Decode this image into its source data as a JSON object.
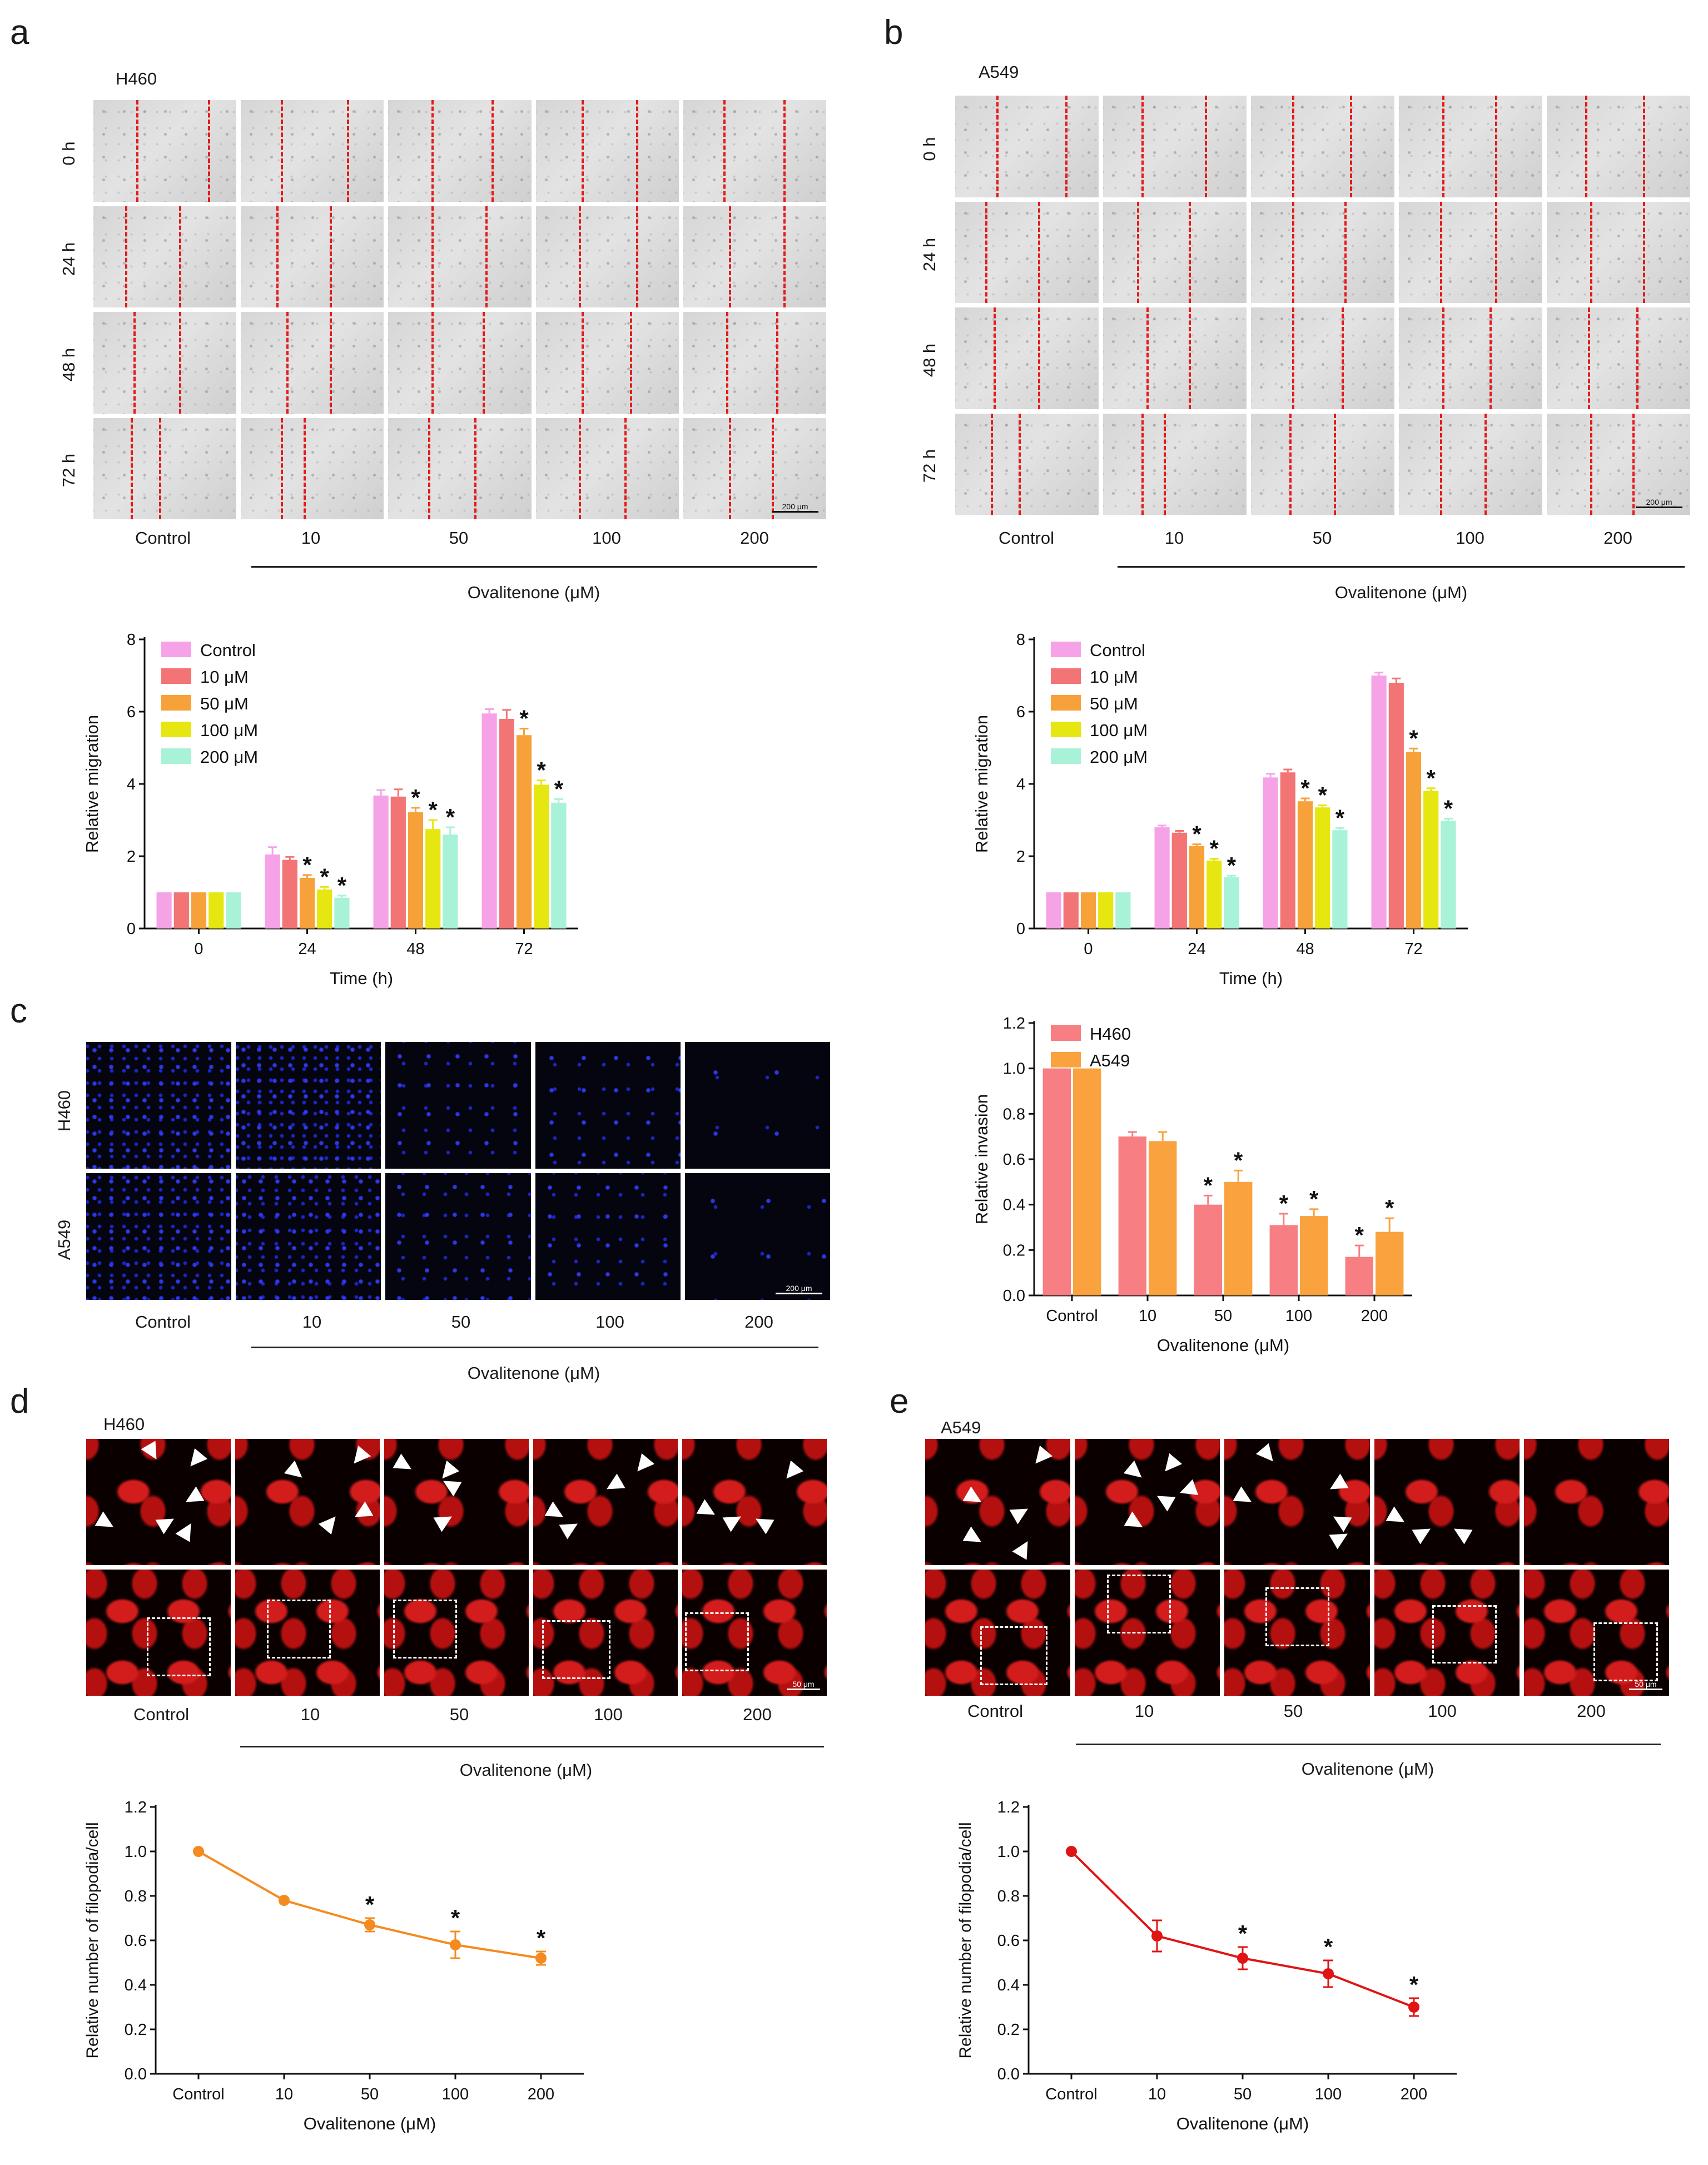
{
  "panels": {
    "a": "a",
    "b": "b",
    "c": "c",
    "d": "d",
    "e": "e"
  },
  "wound": {
    "a": {
      "cell": "H460"
    },
    "b": {
      "cell": "A549"
    },
    "rows": [
      "0 h",
      "24 h",
      "48 h",
      "72 h"
    ],
    "scale": "200 μm"
  },
  "conditions": [
    "Control",
    "10",
    "50",
    "100",
    "200"
  ],
  "treatment_label": "Ovalitenone (μM)",
  "invasion_images": {
    "rows": [
      "H460",
      "A549"
    ],
    "scale": "200 μm"
  },
  "phalloidin": {
    "d": {
      "cell": "H460"
    },
    "e": {
      "cell": "A549"
    },
    "scale": "50 μm"
  },
  "chart_data": [
    {
      "id": "a-migration",
      "type": "bar",
      "title": "",
      "xlabel": "Time (h)",
      "ylabel": "Relative migration",
      "ylim": [
        0,
        8
      ],
      "yticks": [
        "0",
        "2",
        "4",
        "6",
        "8"
      ],
      "categories": [
        "0",
        "24",
        "48",
        "72"
      ],
      "legend_position": "top-left",
      "series": [
        {
          "name": "Control",
          "color": "#f5a3e6",
          "values": [
            1.0,
            2.05,
            3.68,
            5.95
          ],
          "err": [
            0,
            0.2,
            0.15,
            0.12
          ],
          "sig": [
            false,
            false,
            false,
            false
          ]
        },
        {
          "name": "10  μM",
          "color": "#f27474",
          "values": [
            1.0,
            1.9,
            3.65,
            5.8
          ],
          "err": [
            0,
            0.08,
            0.2,
            0.25
          ],
          "sig": [
            false,
            false,
            false,
            false
          ]
        },
        {
          "name": "50  μM",
          "color": "#f7a13a",
          "values": [
            1.0,
            1.4,
            3.22,
            5.35
          ],
          "err": [
            0,
            0.08,
            0.12,
            0.18
          ],
          "sig": [
            false,
            true,
            true,
            true
          ]
        },
        {
          "name": "100  μM",
          "color": "#e6e610",
          "values": [
            1.0,
            1.08,
            2.75,
            3.98
          ],
          "err": [
            0,
            0.07,
            0.25,
            0.12
          ],
          "sig": [
            false,
            true,
            true,
            true
          ]
        },
        {
          "name": "200  μM",
          "color": "#a8f2d8",
          "values": [
            1.0,
            0.85,
            2.6,
            3.48
          ],
          "err": [
            0,
            0.06,
            0.2,
            0.1
          ],
          "sig": [
            false,
            true,
            true,
            true
          ]
        }
      ]
    },
    {
      "id": "b-migration",
      "type": "bar",
      "title": "",
      "xlabel": "Time (h)",
      "ylabel": "Relative migration",
      "ylim": [
        0,
        8
      ],
      "yticks": [
        "0",
        "2",
        "4",
        "6",
        "8"
      ],
      "categories": [
        "0",
        "24",
        "48",
        "72"
      ],
      "legend_position": "top-left",
      "series": [
        {
          "name": "Control",
          "color": "#f5a3e6",
          "values": [
            1.0,
            2.8,
            4.18,
            7.0
          ],
          "err": [
            0,
            0.05,
            0.1,
            0.08
          ],
          "sig": [
            false,
            false,
            false,
            false
          ]
        },
        {
          "name": "10  μM",
          "color": "#f27474",
          "values": [
            1.0,
            2.65,
            4.32,
            6.8
          ],
          "err": [
            0,
            0.05,
            0.08,
            0.12
          ],
          "sig": [
            false,
            false,
            false,
            false
          ]
        },
        {
          "name": "50  μM",
          "color": "#f7a13a",
          "values": [
            1.0,
            2.28,
            3.52,
            4.88
          ],
          "err": [
            0,
            0.05,
            0.08,
            0.1
          ],
          "sig": [
            false,
            true,
            true,
            true
          ]
        },
        {
          "name": "100  μM",
          "color": "#e6e610",
          "values": [
            1.0,
            1.88,
            3.35,
            3.8
          ],
          "err": [
            0,
            0.05,
            0.06,
            0.08
          ],
          "sig": [
            false,
            true,
            true,
            true
          ]
        },
        {
          "name": "200  μM",
          "color": "#a8f2d8",
          "values": [
            1.0,
            1.42,
            2.72,
            2.98
          ],
          "err": [
            0,
            0.04,
            0.06,
            0.06
          ],
          "sig": [
            false,
            true,
            true,
            true
          ]
        }
      ]
    },
    {
      "id": "c-invasion",
      "type": "bar",
      "title": "",
      "xlabel": "Ovalitenone (μM)",
      "ylabel": "Relative invasion",
      "ylim": [
        0,
        1.2
      ],
      "yticks": [
        "0.0",
        "0.2",
        "0.4",
        "0.6",
        "0.8",
        "1.0",
        "1.2"
      ],
      "categories": [
        "Control",
        "10",
        "50",
        "100",
        "200"
      ],
      "legend_position": "top-left",
      "series": [
        {
          "name": "H460",
          "color": "#f77e82",
          "values": [
            1.0,
            0.7,
            0.4,
            0.31,
            0.17
          ],
          "err": [
            0,
            0.02,
            0.04,
            0.05,
            0.05
          ],
          "sig": [
            false,
            false,
            true,
            true,
            true
          ]
        },
        {
          "name": "A549",
          "color": "#f9a23e",
          "values": [
            1.0,
            0.68,
            0.5,
            0.35,
            0.28
          ],
          "err": [
            0,
            0.04,
            0.05,
            0.03,
            0.06
          ],
          "sig": [
            false,
            false,
            true,
            true,
            true
          ]
        }
      ]
    },
    {
      "id": "d-filopodia",
      "type": "line",
      "title": "",
      "xlabel": "Ovalitenone (μM)",
      "ylabel": "Relative number of filopodia/cell",
      "ylim": [
        0,
        1.2
      ],
      "yticks": [
        "0.0",
        "0.2",
        "0.4",
        "0.6",
        "0.8",
        "1.0",
        "1.2"
      ],
      "categories": [
        "Control",
        "10",
        "50",
        "100",
        "200"
      ],
      "series": [
        {
          "name": "H460",
          "color": "#f58b1f",
          "values": [
            1.0,
            0.78,
            0.67,
            0.58,
            0.52
          ],
          "err": [
            0,
            0.01,
            0.03,
            0.06,
            0.03
          ],
          "sig": [
            false,
            false,
            true,
            true,
            true
          ]
        }
      ]
    },
    {
      "id": "e-filopodia",
      "type": "line",
      "title": "",
      "xlabel": "Ovalitenone (μM)",
      "ylabel": "Relative number of filopodia/cell",
      "ylim": [
        0,
        1.2
      ],
      "yticks": [
        "0.0",
        "0.2",
        "0.4",
        "0.6",
        "0.8",
        "1.0",
        "1.2"
      ],
      "categories": [
        "Control",
        "10",
        "50",
        "100",
        "200"
      ],
      "series": [
        {
          "name": "A549",
          "color": "#e01414",
          "values": [
            1.0,
            0.62,
            0.52,
            0.45,
            0.3
          ],
          "err": [
            0,
            0.07,
            0.05,
            0.06,
            0.04
          ],
          "sig": [
            false,
            false,
            true,
            true,
            true
          ]
        }
      ]
    }
  ]
}
